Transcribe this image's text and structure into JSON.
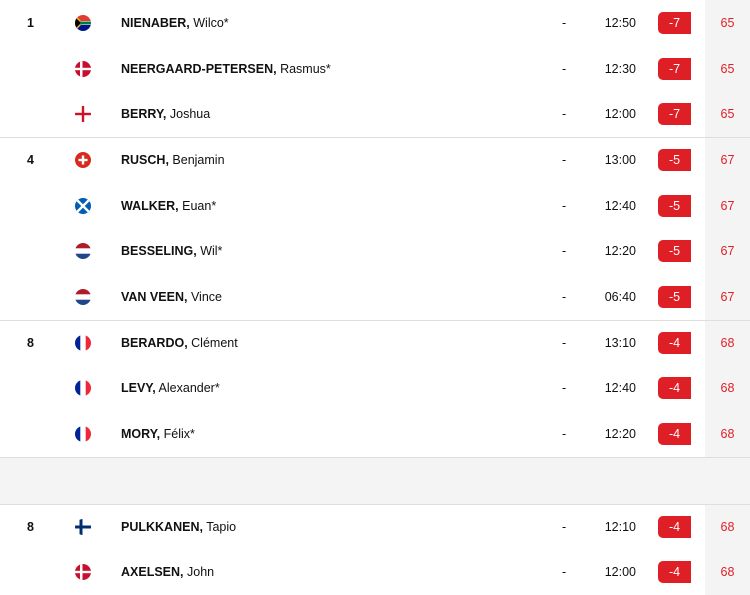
{
  "colors": {
    "accent": "#df1f26",
    "score_column_bg": "#f4f4f4"
  },
  "groups": [
    {
      "rows": [
        {
          "pos": "1",
          "flag": "south-africa",
          "surname": "NIENABER,",
          "first": "Wilco*",
          "thru": "-",
          "time": "12:50",
          "to_par": "-7",
          "score": "65"
        },
        {
          "pos": "",
          "flag": "denmark",
          "surname": "NEERGAARD-PETERSEN,",
          "first": "Rasmus*",
          "thru": "-",
          "time": "12:30",
          "to_par": "-7",
          "score": "65"
        },
        {
          "pos": "",
          "flag": "england",
          "surname": "BERRY,",
          "first": "Joshua",
          "thru": "-",
          "time": "12:00",
          "to_par": "-7",
          "score": "65"
        }
      ]
    },
    {
      "rows": [
        {
          "pos": "4",
          "flag": "switzerland",
          "surname": "RUSCH,",
          "first": "Benjamin",
          "thru": "-",
          "time": "13:00",
          "to_par": "-5",
          "score": "67"
        },
        {
          "pos": "",
          "flag": "scotland",
          "surname": "WALKER,",
          "first": "Euan*",
          "thru": "-",
          "time": "12:40",
          "to_par": "-5",
          "score": "67"
        },
        {
          "pos": "",
          "flag": "netherlands",
          "surname": "BESSELING,",
          "first": "Wil*",
          "thru": "-",
          "time": "12:20",
          "to_par": "-5",
          "score": "67"
        },
        {
          "pos": "",
          "flag": "netherlands",
          "surname": "VAN VEEN,",
          "first": "Vince",
          "thru": "-",
          "time": "06:40",
          "to_par": "-5",
          "score": "67"
        }
      ]
    },
    {
      "rows": [
        {
          "pos": "8",
          "flag": "france",
          "surname": "BERARDO,",
          "first": "Clément",
          "thru": "-",
          "time": "13:10",
          "to_par": "-4",
          "score": "68"
        },
        {
          "pos": "",
          "flag": "france",
          "surname": "LEVY,",
          "first": "Alexander*",
          "thru": "-",
          "time": "12:40",
          "to_par": "-4",
          "score": "68"
        },
        {
          "pos": "",
          "flag": "france",
          "surname": "MORY,",
          "first": "Félix*",
          "thru": "-",
          "time": "12:20",
          "to_par": "-4",
          "score": "68"
        }
      ]
    },
    {
      "gap": true
    },
    {
      "rows": [
        {
          "pos": "8",
          "flag": "finland",
          "surname": "PULKKANEN,",
          "first": "Tapio",
          "thru": "-",
          "time": "12:10",
          "to_par": "-4",
          "score": "68"
        },
        {
          "pos": "",
          "flag": "denmark",
          "surname": "AXELSEN,",
          "first": "John",
          "thru": "-",
          "time": "12:00",
          "to_par": "-4",
          "score": "68"
        }
      ]
    }
  ]
}
